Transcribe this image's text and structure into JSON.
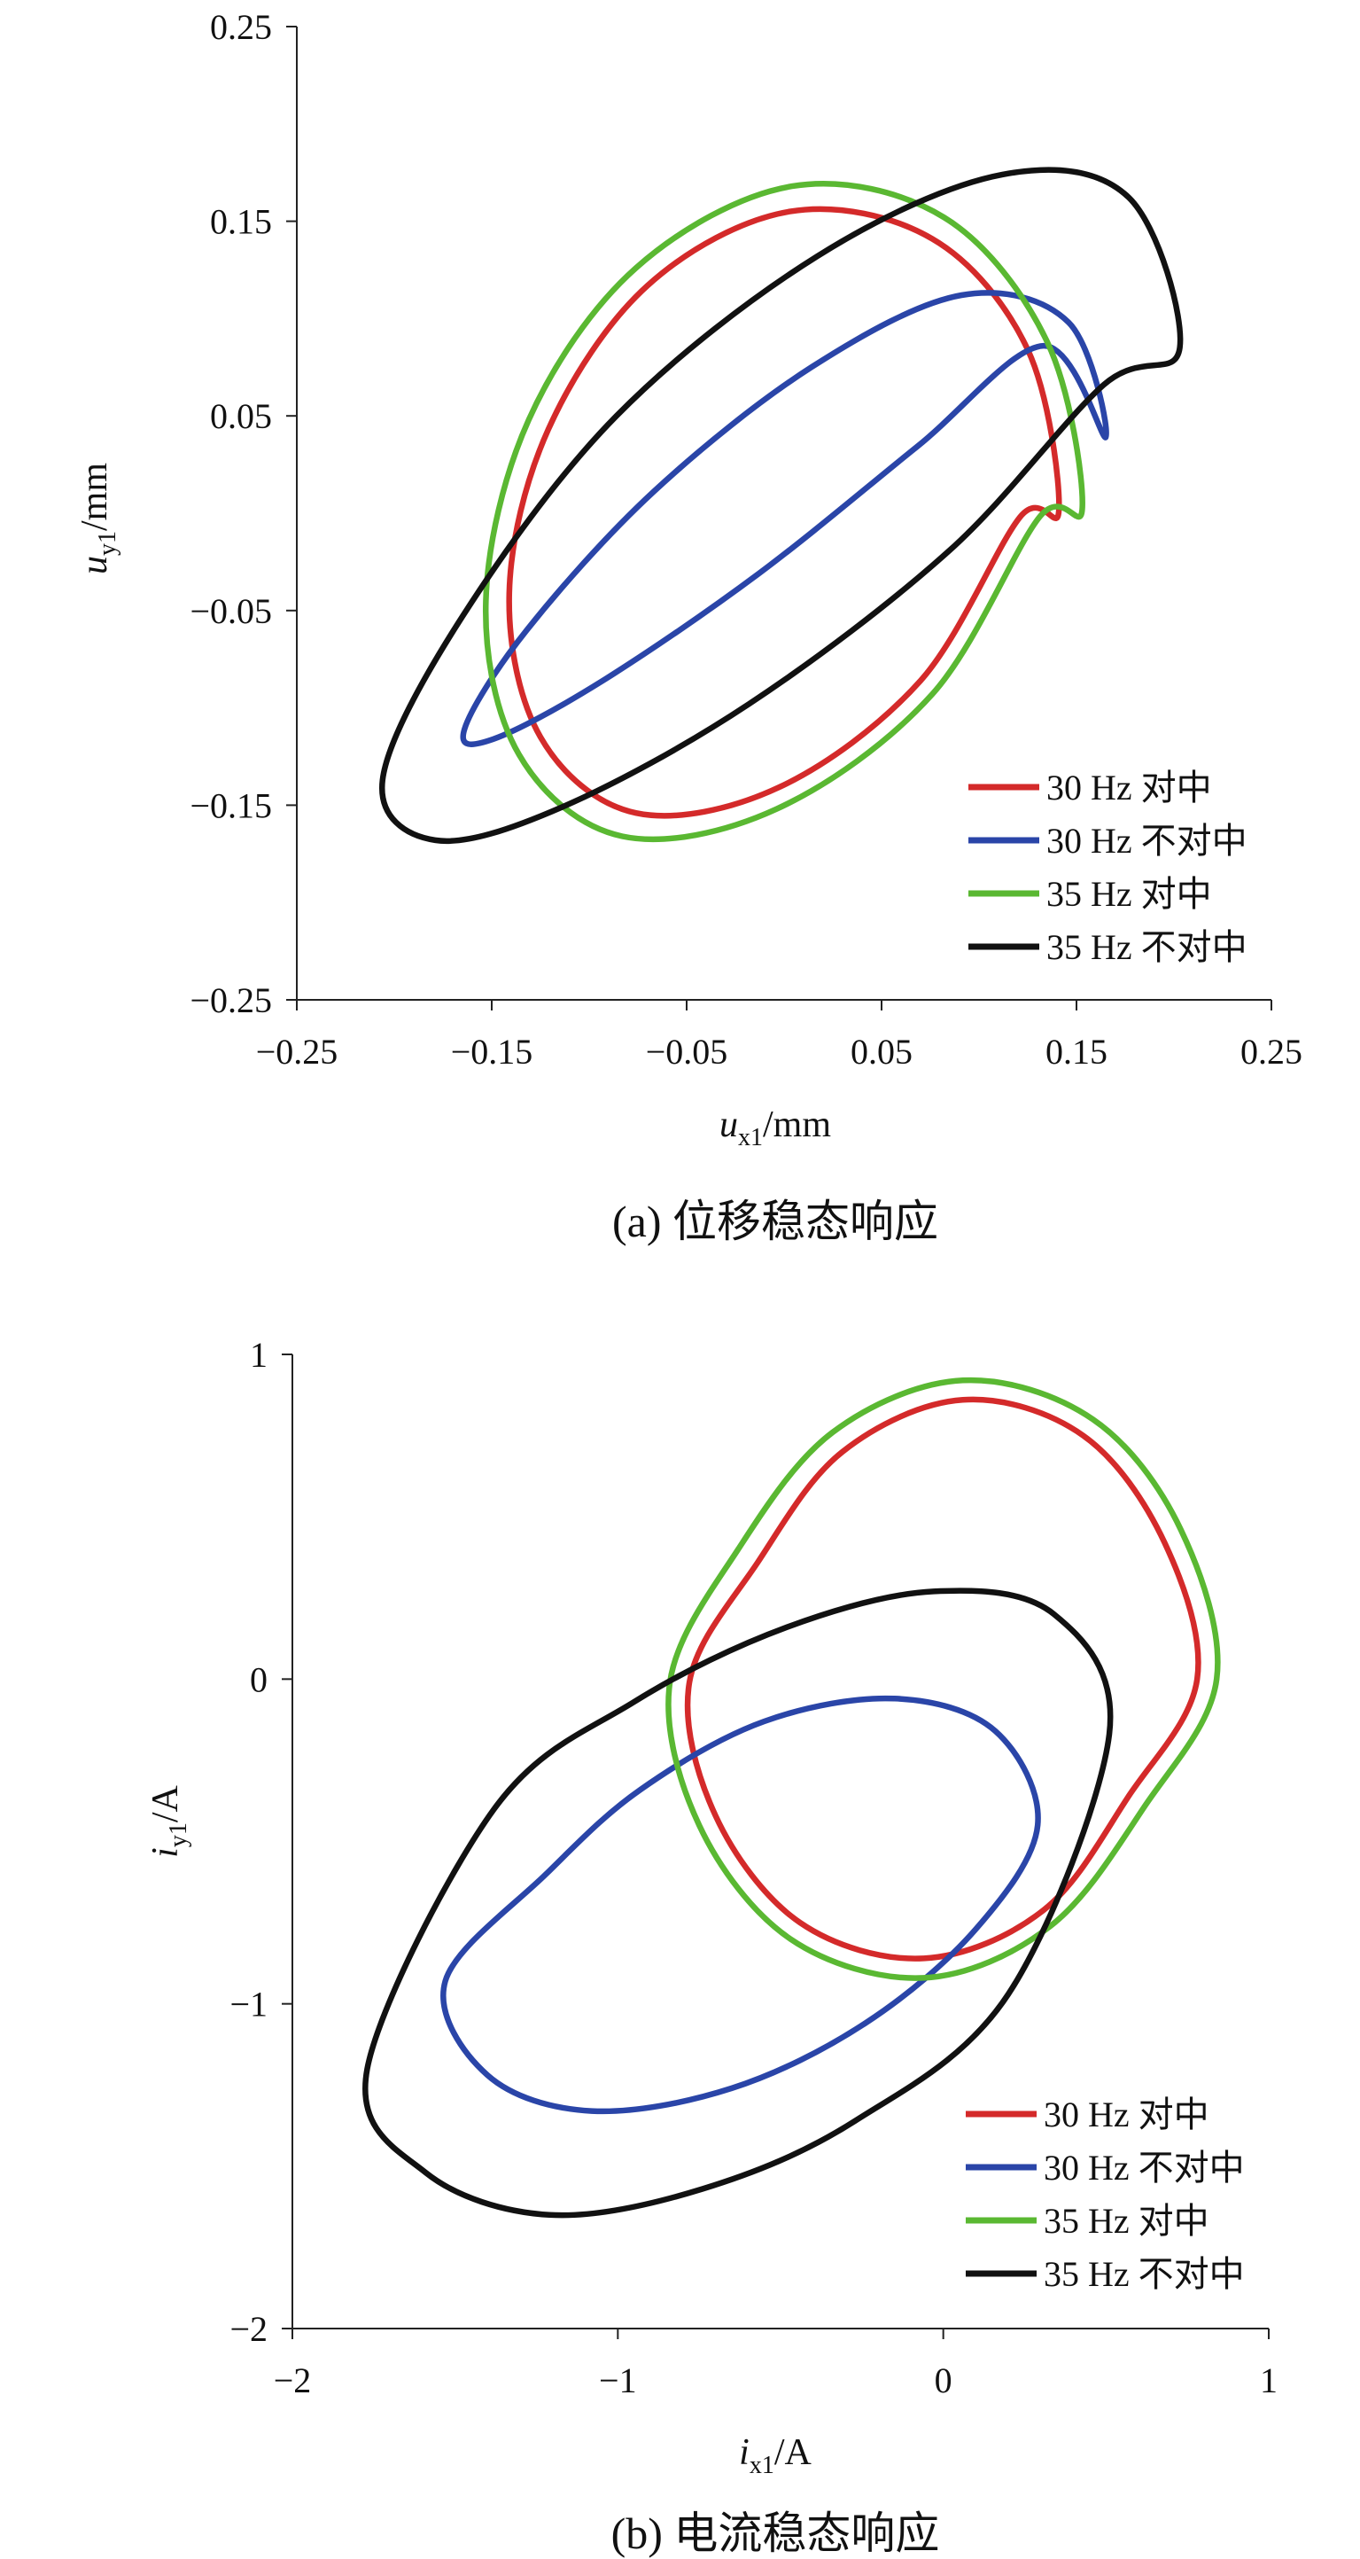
{
  "chart_data": [
    {
      "type": "line",
      "caption": "(a) 位移稳态响应",
      "xlabel": {
        "var": "u",
        "sub": "x1",
        "unit": "/mm"
      },
      "ylabel": {
        "var": "u",
        "sub": "y1",
        "unit": "/mm"
      },
      "xlim": [
        -0.25,
        0.25
      ],
      "ylim": [
        -0.25,
        0.25
      ],
      "xticks": [
        -0.25,
        -0.15,
        -0.05,
        0.05,
        0.15,
        0.25
      ],
      "yticks": [
        -0.25,
        -0.15,
        -0.05,
        0.05,
        0.15,
        0.25
      ],
      "xtick_labels": [
        "−0.25",
        "−0.15",
        "−0.05",
        "0.05",
        "0.15",
        "0.25"
      ],
      "ytick_labels": [
        "−0.25",
        "−0.15",
        "−0.05",
        "0.05",
        "0.15",
        "0.25"
      ],
      "legend_position": "bottom-right",
      "series": [
        {
          "name": "30 Hz 对中",
          "color": "#d42a2a",
          "x": [
            0.141,
            0.125,
            0.076,
            0.003,
            -0.07,
            -0.121,
            -0.141,
            -0.125,
            -0.076,
            -0.003,
            0.07,
            0.121,
            0.141
          ],
          "y": [
            0.002,
            0.084,
            0.141,
            0.155,
            0.117,
            0.043,
            -0.041,
            -0.115,
            -0.154,
            -0.141,
            -0.086,
            -0.002,
            0.002
          ]
        },
        {
          "name": "30 Hz 不对中",
          "color": "#2a45a8",
          "x": [
            0.165,
            0.146,
            0.091,
            0.014,
            -0.067,
            -0.132,
            -0.164,
            -0.149,
            -0.093,
            -0.013,
            0.068,
            0.133,
            0.165
          ],
          "y": [
            0.039,
            0.098,
            0.112,
            0.075,
            0.011,
            -0.06,
            -0.111,
            -0.116,
            -0.086,
            -0.031,
            0.034,
            0.086,
            0.039
          ]
        },
        {
          "name": "35 Hz 对中",
          "color": "#5ab832",
          "x": [
            0.153,
            0.135,
            0.082,
            0.004,
            -0.076,
            -0.131,
            -0.153,
            -0.136,
            -0.083,
            -0.004,
            0.076,
            0.131,
            0.153
          ],
          "y": [
            0.003,
            0.088,
            0.152,
            0.168,
            0.126,
            0.048,
            -0.045,
            -0.124,
            -0.166,
            -0.152,
            -0.093,
            -0.002,
            0.003
          ]
        },
        {
          "name": "35 Hz 不对中",
          "color": "#111111",
          "x": [
            0.203,
            0.177,
            0.112,
            0.017,
            -0.086,
            -0.165,
            -0.206,
            -0.179,
            -0.114,
            -0.018,
            0.085,
            0.164,
            0.203
          ],
          "y": [
            0.085,
            0.162,
            0.174,
            0.132,
            0.05,
            -0.053,
            -0.137,
            -0.168,
            -0.151,
            -0.098,
            -0.019,
            0.066,
            0.085
          ]
        }
      ]
    },
    {
      "type": "line",
      "caption": "(b) 电流稳态响应",
      "xlabel": {
        "var": "i",
        "sub": "x1",
        "unit": "/A"
      },
      "ylabel": {
        "var": "i",
        "sub": "y1",
        "unit": "/A"
      },
      "xlim": [
        -2,
        1
      ],
      "ylim": [
        -2,
        1
      ],
      "xticks": [
        -2,
        -1,
        0,
        1
      ],
      "yticks": [
        -2,
        -1,
        0,
        1
      ],
      "xtick_labels": [
        "−2",
        "−1",
        "0",
        "1"
      ],
      "ytick_labels": [
        "−2",
        "−1",
        "0",
        "1"
      ],
      "legend_position": "bottom-right",
      "series": [
        {
          "name": "30 Hz 对中",
          "color": "#d42a2a",
          "x": [
            0.78,
            0.68,
            0.43,
            0.06,
            -0.31,
            -0.57,
            -0.78,
            -0.7,
            -0.44,
            -0.06,
            0.31,
            0.57,
            0.78
          ],
          "y": [
            0.0,
            0.42,
            0.75,
            0.86,
            0.7,
            0.36,
            -0.01,
            -0.42,
            -0.75,
            -0.86,
            -0.71,
            -0.36,
            0.0
          ]
        },
        {
          "name": "30 Hz 不对中",
          "color": "#2a45a8",
          "x": [
            0.29,
            0.16,
            -0.15,
            -0.55,
            -0.93,
            -1.22,
            -1.53,
            -1.4,
            -1.08,
            -0.65,
            -0.24,
            0.1,
            0.29
          ],
          "y": [
            -0.45,
            -0.16,
            -0.06,
            -0.13,
            -0.34,
            -0.6,
            -0.93,
            -1.22,
            -1.33,
            -1.26,
            -1.06,
            -0.77,
            -0.45
          ]
        },
        {
          "name": "35 Hz 对中",
          "color": "#5ab832",
          "x": [
            0.84,
            0.73,
            0.46,
            0.06,
            -0.34,
            -0.63,
            -0.84,
            -0.75,
            -0.47,
            -0.06,
            0.33,
            0.62,
            0.84
          ],
          "y": [
            0.0,
            0.46,
            0.8,
            0.92,
            0.76,
            0.4,
            -0.01,
            -0.45,
            -0.8,
            -0.92,
            -0.76,
            -0.39,
            0.0
          ]
        },
        {
          "name": "35 Hz 不对中",
          "color": "#111111",
          "x": [
            0.51,
            0.34,
            -0.03,
            -0.48,
            -0.95,
            -1.38,
            -1.77,
            -1.59,
            -1.21,
            -0.74,
            -0.27,
            0.2,
            0.51
          ],
          "y": [
            -0.17,
            0.2,
            0.27,
            0.16,
            -0.07,
            -0.4,
            -1.2,
            -1.52,
            -1.65,
            -1.57,
            -1.36,
            -0.97,
            -0.17
          ]
        }
      ]
    }
  ]
}
